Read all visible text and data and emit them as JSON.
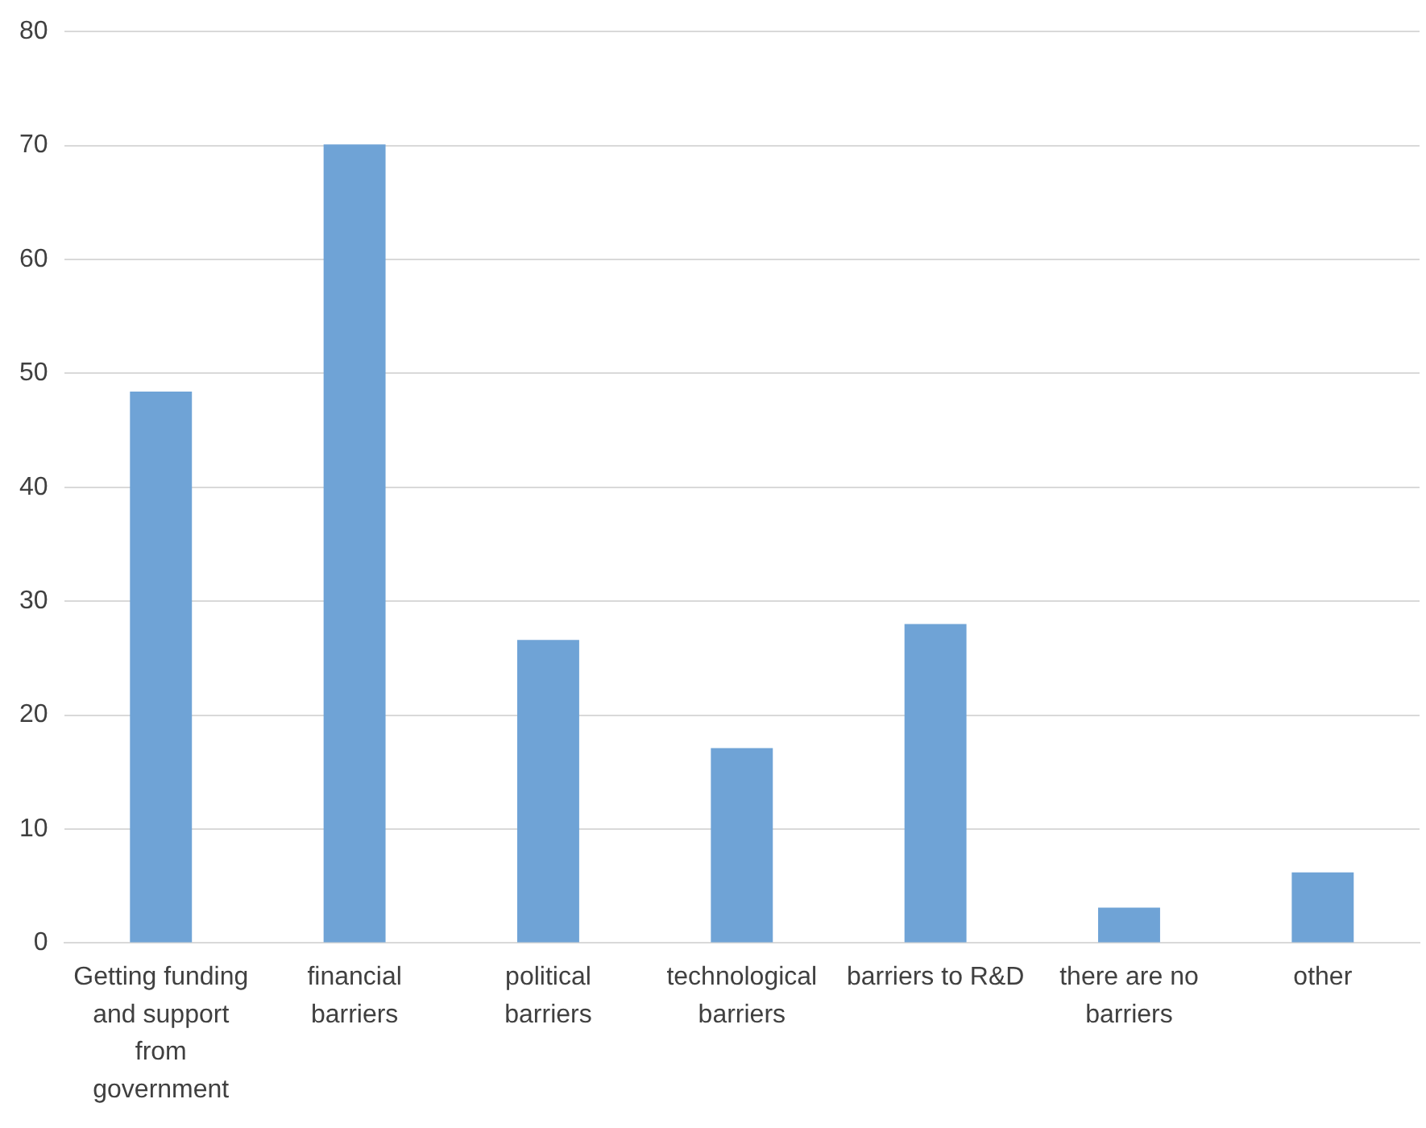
{
  "chart_data": {
    "type": "bar",
    "categories": [
      "Getting funding and support from government",
      "financial barriers",
      "political barriers",
      "technological barriers",
      "barriers to R&D",
      "there are no barriers",
      "other"
    ],
    "values": [
      48.4,
      70.1,
      26.6,
      17.1,
      28.0,
      3.1,
      6.2
    ],
    "color": "#6fa3d6",
    "ylim": [
      0,
      80
    ],
    "yticks": [
      0,
      10,
      20,
      30,
      40,
      50,
      60,
      70,
      80
    ],
    "grid": "y",
    "legend": false
  }
}
